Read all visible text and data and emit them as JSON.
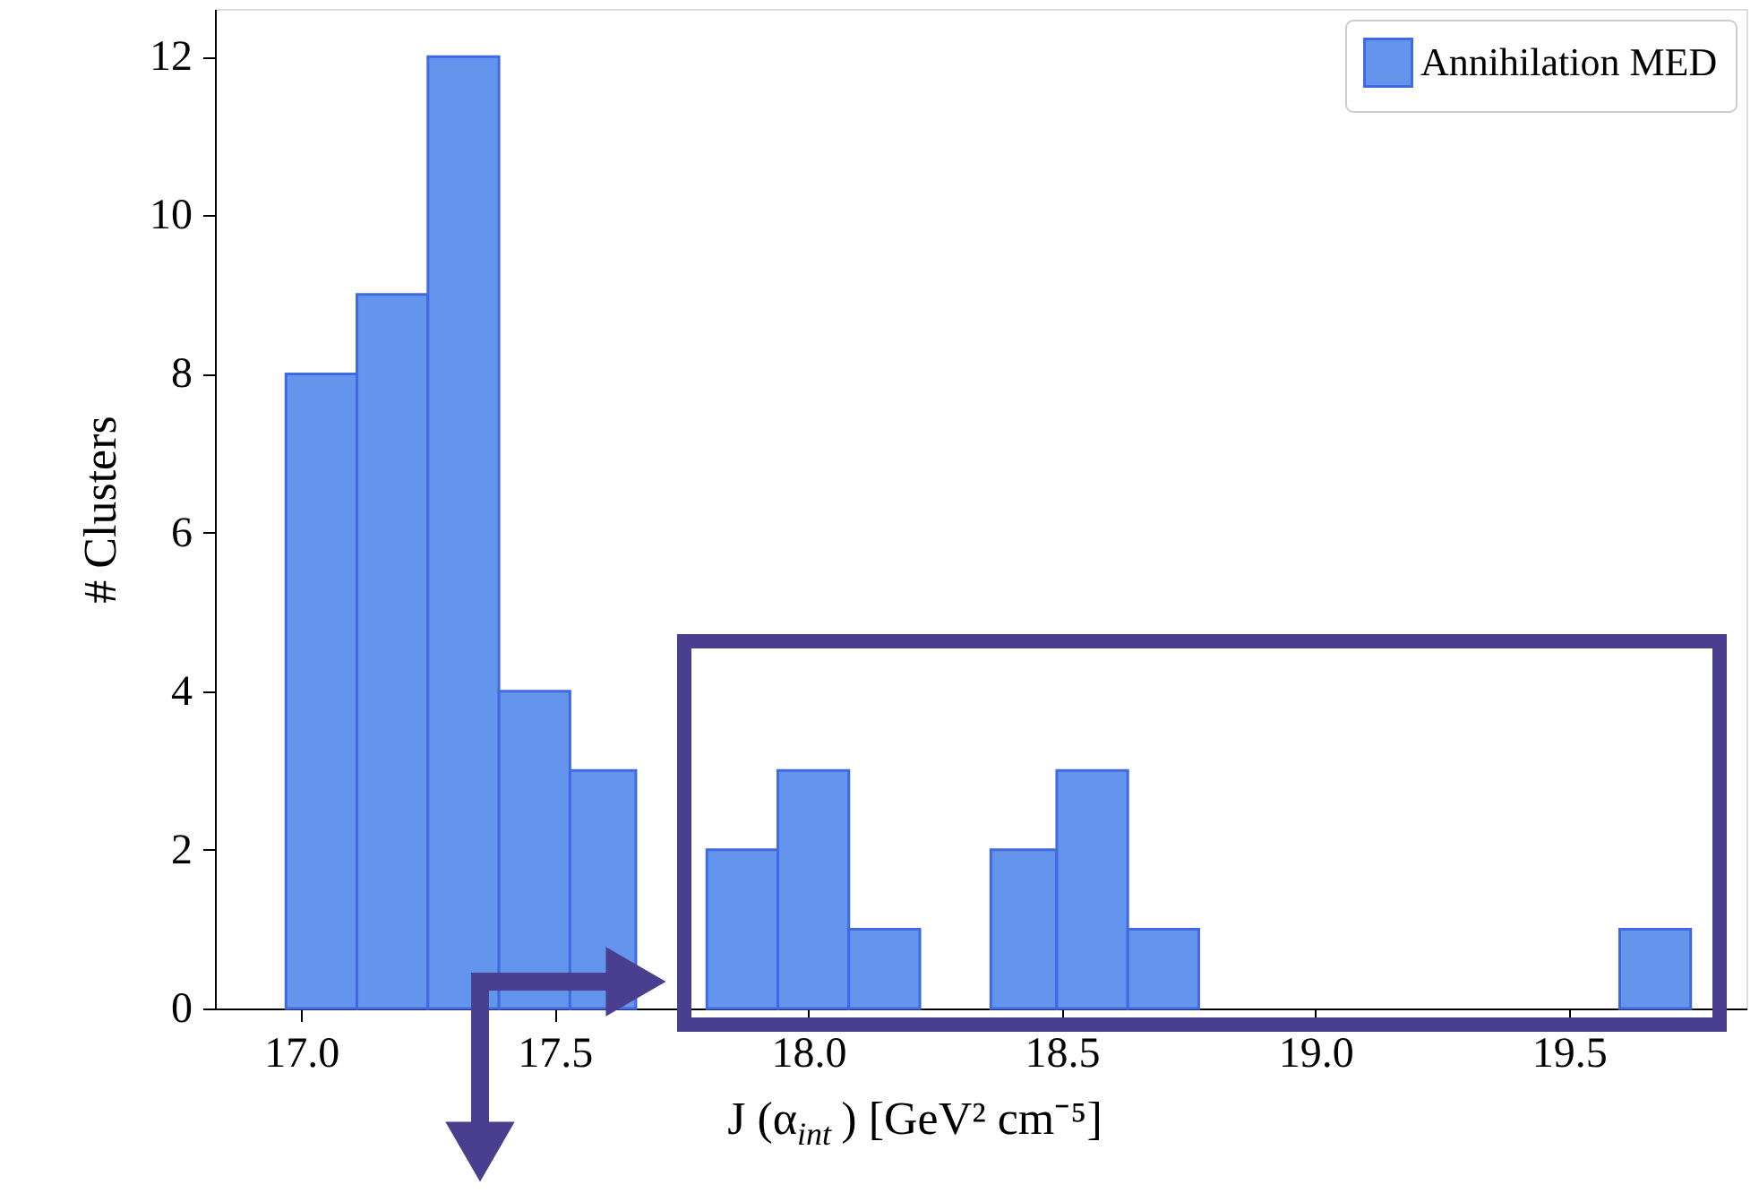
{
  "chart_data": {
    "type": "histogram",
    "xlabel": "J (α$_{int}$) [GeV² cm⁻⁵]",
    "ylabel": "# Clusters",
    "bins": [
      16.97,
      17.11,
      17.25,
      17.39,
      17.53,
      17.66,
      17.8,
      17.94,
      18.08,
      18.22,
      18.36,
      18.49,
      18.63,
      18.77,
      19.6,
      19.74
    ],
    "series": [
      {
        "name": "Annihilation MED",
        "color": "#6495ed",
        "values": [
          8,
          9,
          12,
          4,
          3,
          0,
          2,
          3,
          1,
          0,
          2,
          3,
          1,
          0,
          1
        ]
      }
    ],
    "xlim": [
      16.83,
      19.85
    ],
    "ylim": [
      0,
      12.6
    ],
    "xticks": [
      {
        "value": 17,
        "label": "17.0"
      },
      17.5,
      {
        "value": 18,
        "label": "18.0"
      },
      18.5,
      {
        "value": 19,
        "label": "19.0"
      },
      19.5
    ],
    "yticks": [
      0,
      2,
      4,
      6,
      8,
      10,
      12
    ],
    "grid": false,
    "legend": "top right"
  }
}
